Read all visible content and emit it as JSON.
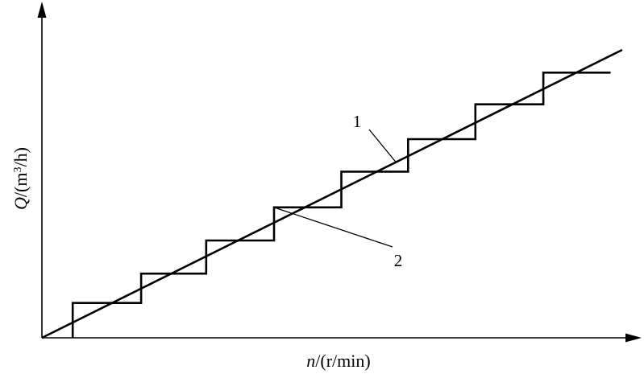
{
  "chart_data": {
    "type": "line",
    "xlabel": {
      "var": "n",
      "unit_prefix": "/(r/min)"
    },
    "ylabel": {
      "var": "Q",
      "unit_prefix": "/(m",
      "unit_sup": "3",
      "unit_suffix": "/h)"
    },
    "xlim": [
      0,
      100
    ],
    "ylim": [
      0,
      100
    ],
    "grid": false,
    "legend": "none",
    "series": [
      {
        "callout": "1",
        "style": "straight",
        "x": [
          0,
          100
        ],
        "y": [
          0,
          100
        ]
      },
      {
        "callout": "2",
        "style": "staircase",
        "x": [
          5.3,
          5.3,
          17.1,
          17.1,
          28.3,
          28.3,
          40.0,
          40.0,
          51.6,
          51.6,
          63.1,
          63.1,
          74.7,
          74.7,
          86.4,
          86.4,
          98.0
        ],
        "y": [
          0,
          12.1,
          12.1,
          22.3,
          22.3,
          33.8,
          33.8,
          45.3,
          45.3,
          57.7,
          57.7,
          69.0,
          69.0,
          81.1,
          81.1,
          92.1,
          92.1
        ]
      }
    ]
  },
  "colors": {
    "axis": "#000000",
    "line": "#000000"
  }
}
